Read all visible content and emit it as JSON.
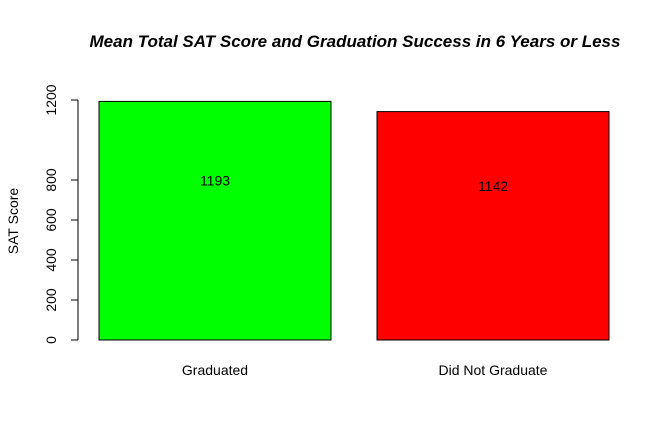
{
  "chart_data": {
    "type": "bar",
    "title": "Mean Total SAT Score and Graduation Success in 6 Years or Less",
    "xlabel": "",
    "ylabel": "SAT Score",
    "categories": [
      "Graduated",
      "Did Not Graduate"
    ],
    "values": [
      1193,
      1142
    ],
    "data_labels": [
      "1193",
      "1142"
    ],
    "colors": [
      "#00ff00",
      "#ff0000"
    ],
    "yticks": [
      0,
      200,
      400,
      600,
      800,
      1200
    ],
    "ylim": [
      0,
      1200
    ],
    "grid": false,
    "legend": "none"
  }
}
